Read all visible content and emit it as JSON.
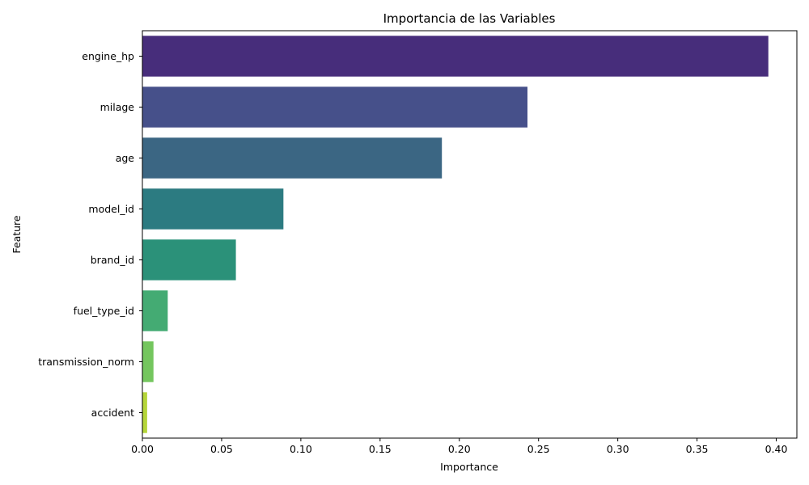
{
  "chart_data": {
    "type": "bar",
    "orientation": "horizontal",
    "title": "Importancia de las Variables",
    "xlabel": "Importance",
    "ylabel": "Feature",
    "categories": [
      "engine_hp",
      "milage",
      "age",
      "model_id",
      "brand_id",
      "fuel_type_id",
      "transmission_norm",
      "accident"
    ],
    "values": [
      0.395,
      0.243,
      0.189,
      0.089,
      0.059,
      0.016,
      0.007,
      0.003
    ],
    "colors": [
      "#472d7b",
      "#46508a",
      "#3b6683",
      "#2c7b81",
      "#2b9179",
      "#44ab73",
      "#74c65e",
      "#b5d63a"
    ],
    "xlim": [
      0,
      0.413
    ],
    "xticks": [
      0.0,
      0.05,
      0.1,
      0.15,
      0.2,
      0.25,
      0.3,
      0.35,
      0.4
    ],
    "xtick_labels": [
      "0.00",
      "0.05",
      "0.10",
      "0.15",
      "0.20",
      "0.25",
      "0.30",
      "0.35",
      "0.40"
    ],
    "grid": false,
    "legend": "none"
  }
}
